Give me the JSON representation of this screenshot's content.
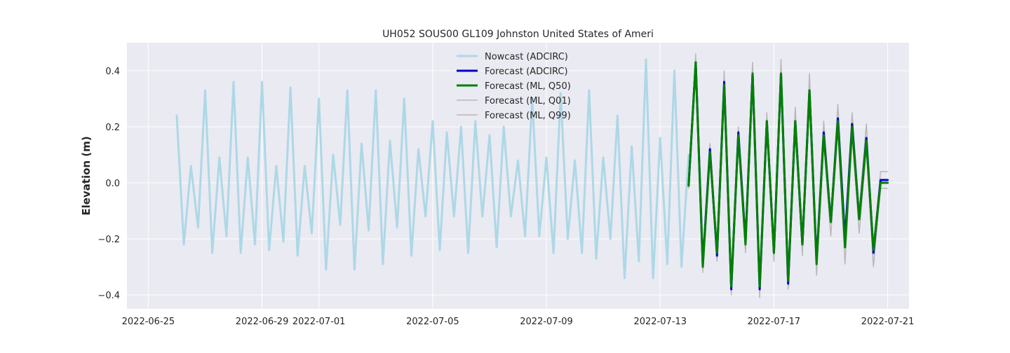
{
  "chart_data": {
    "type": "line",
    "title": "UH052 SOUS00 GL109 Johnston United States of Ameri",
    "xlabel": "",
    "ylabel": "Elevation (m)",
    "x_axis": {
      "type": "date",
      "range": [
        "2022-06-24T06:00",
        "2022-07-21T18:00"
      ],
      "ticks": [
        "2022-06-25",
        "2022-06-29",
        "2022-07-01",
        "2022-07-05",
        "2022-07-09",
        "2022-07-13",
        "2022-07-17",
        "2022-07-21"
      ]
    },
    "y_axis": {
      "range": [
        -0.45,
        0.5
      ],
      "ticks": [
        -0.4,
        -0.2,
        0.0,
        0.2,
        0.4
      ],
      "tick_labels": [
        "−0.4",
        "−0.2",
        "0.0",
        "0.2",
        "0.4"
      ]
    },
    "grid": true,
    "legend_placement": "top-center",
    "colors": {
      "background": "#eaeaf2",
      "grid": "#ffffff",
      "nowcast": "#add8e6",
      "forecast_adcirc": "#0000cd",
      "forecast_ml_q50": "#008000",
      "forecast_ml_quantiles": "#b8b8b8"
    },
    "series": [
      {
        "name": "Nowcast (ADCIRC)",
        "x": [
          "2022-06-26T00:00",
          "2022-06-26T06:00",
          "2022-06-26T12:00",
          "2022-06-26T18:00",
          "2022-06-27T00:00",
          "2022-06-27T06:00",
          "2022-06-27T12:00",
          "2022-06-27T18:00",
          "2022-06-28T00:00",
          "2022-06-28T06:00",
          "2022-06-28T12:00",
          "2022-06-28T18:00",
          "2022-06-29T00:00",
          "2022-06-29T06:00",
          "2022-06-29T12:00",
          "2022-06-29T18:00",
          "2022-06-30T00:00",
          "2022-06-30T06:00",
          "2022-06-30T12:00",
          "2022-06-30T18:00",
          "2022-07-01T00:00",
          "2022-07-01T06:00",
          "2022-07-01T12:00",
          "2022-07-01T18:00",
          "2022-07-02T00:00",
          "2022-07-02T06:00",
          "2022-07-02T12:00",
          "2022-07-02T18:00",
          "2022-07-03T00:00",
          "2022-07-03T06:00",
          "2022-07-03T12:00",
          "2022-07-03T18:00",
          "2022-07-04T00:00",
          "2022-07-04T06:00",
          "2022-07-04T12:00",
          "2022-07-04T18:00",
          "2022-07-05T00:00",
          "2022-07-05T06:00",
          "2022-07-05T12:00",
          "2022-07-05T18:00",
          "2022-07-06T00:00",
          "2022-07-06T06:00",
          "2022-07-06T12:00",
          "2022-07-06T18:00",
          "2022-07-07T00:00",
          "2022-07-07T06:00",
          "2022-07-07T12:00",
          "2022-07-07T18:00",
          "2022-07-08T00:00",
          "2022-07-08T06:00",
          "2022-07-08T12:00",
          "2022-07-08T18:00",
          "2022-07-09T00:00",
          "2022-07-09T06:00",
          "2022-07-09T12:00",
          "2022-07-09T18:00",
          "2022-07-10T00:00",
          "2022-07-10T06:00",
          "2022-07-10T12:00",
          "2022-07-10T18:00",
          "2022-07-11T00:00",
          "2022-07-11T06:00",
          "2022-07-11T12:00",
          "2022-07-11T18:00",
          "2022-07-12T00:00",
          "2022-07-12T06:00",
          "2022-07-12T12:00",
          "2022-07-12T18:00",
          "2022-07-13T00:00",
          "2022-07-13T06:00",
          "2022-07-13T12:00",
          "2022-07-13T18:00",
          "2022-07-14T00:00"
        ],
        "y": [
          0.24,
          -0.22,
          0.06,
          -0.16,
          0.33,
          -0.25,
          0.09,
          -0.19,
          0.36,
          -0.25,
          0.09,
          -0.22,
          0.36,
          -0.24,
          0.06,
          -0.21,
          0.34,
          -0.26,
          0.06,
          -0.18,
          0.3,
          -0.31,
          0.1,
          -0.15,
          0.33,
          -0.31,
          0.14,
          -0.17,
          0.33,
          -0.29,
          0.15,
          -0.16,
          0.3,
          -0.26,
          0.12,
          -0.12,
          0.22,
          -0.24,
          0.18,
          -0.12,
          0.2,
          -0.25,
          0.22,
          -0.12,
          0.17,
          -0.23,
          0.2,
          -0.12,
          0.08,
          -0.19,
          0.3,
          -0.19,
          0.09,
          -0.25,
          0.32,
          -0.2,
          0.08,
          -0.25,
          0.33,
          -0.27,
          0.09,
          -0.2,
          0.24,
          -0.34,
          0.13,
          -0.28,
          0.44,
          -0.34,
          0.16,
          -0.29,
          0.4,
          -0.3,
          0.1
        ]
      },
      {
        "name": "Forecast (ADCIRC)",
        "x": [
          "2022-07-14T00:00",
          "2022-07-14T06:00",
          "2022-07-14T12:00",
          "2022-07-14T18:00",
          "2022-07-15T00:00",
          "2022-07-15T06:00",
          "2022-07-15T12:00",
          "2022-07-15T18:00",
          "2022-07-16T00:00",
          "2022-07-16T06:00",
          "2022-07-16T12:00",
          "2022-07-16T18:00",
          "2022-07-17T00:00",
          "2022-07-17T06:00",
          "2022-07-17T12:00",
          "2022-07-17T18:00",
          "2022-07-18T00:00",
          "2022-07-18T06:00",
          "2022-07-18T12:00",
          "2022-07-18T18:00",
          "2022-07-19T00:00",
          "2022-07-19T06:00",
          "2022-07-19T12:00",
          "2022-07-19T18:00",
          "2022-07-20T00:00",
          "2022-07-20T06:00",
          "2022-07-20T12:00",
          "2022-07-20T18:00",
          "2022-07-21T00:00"
        ],
        "y": [
          -0.01,
          0.43,
          -0.29,
          0.12,
          -0.26,
          0.36,
          -0.38,
          0.18,
          -0.21,
          0.39,
          -0.38,
          0.22,
          -0.25,
          0.39,
          -0.36,
          0.22,
          -0.22,
          0.33,
          -0.28,
          0.18,
          -0.14,
          0.23,
          -0.2,
          0.21,
          -0.13,
          0.16,
          -0.25,
          0.01,
          0.01
        ]
      },
      {
        "name": "Forecast (ML, Q50)",
        "x": [
          "2022-07-14T00:00",
          "2022-07-14T06:00",
          "2022-07-14T12:00",
          "2022-07-14T18:00",
          "2022-07-15T00:00",
          "2022-07-15T06:00",
          "2022-07-15T12:00",
          "2022-07-15T18:00",
          "2022-07-16T00:00",
          "2022-07-16T06:00",
          "2022-07-16T12:00",
          "2022-07-16T18:00",
          "2022-07-17T00:00",
          "2022-07-17T06:00",
          "2022-07-17T12:00",
          "2022-07-17T18:00",
          "2022-07-18T00:00",
          "2022-07-18T06:00",
          "2022-07-18T12:00",
          "2022-07-18T18:00",
          "2022-07-19T00:00",
          "2022-07-19T06:00",
          "2022-07-19T12:00",
          "2022-07-19T18:00",
          "2022-07-20T00:00",
          "2022-07-20T06:00",
          "2022-07-20T12:00",
          "2022-07-20T18:00",
          "2022-07-21T00:00"
        ],
        "y": [
          -0.01,
          0.43,
          -0.3,
          0.11,
          -0.25,
          0.35,
          -0.37,
          0.17,
          -0.22,
          0.39,
          -0.37,
          0.22,
          -0.25,
          0.39,
          -0.35,
          0.22,
          -0.22,
          0.33,
          -0.29,
          0.17,
          -0.14,
          0.22,
          -0.23,
          0.2,
          -0.13,
          0.15,
          -0.24,
          0.0,
          0.0
        ]
      },
      {
        "name": "Forecast (ML, Q01)",
        "x": [
          "2022-07-14T00:00",
          "2022-07-14T06:00",
          "2022-07-14T12:00",
          "2022-07-14T18:00",
          "2022-07-15T00:00",
          "2022-07-15T06:00",
          "2022-07-15T12:00",
          "2022-07-15T18:00",
          "2022-07-16T00:00",
          "2022-07-16T06:00",
          "2022-07-16T12:00",
          "2022-07-16T18:00",
          "2022-07-17T00:00",
          "2022-07-17T06:00",
          "2022-07-17T12:00",
          "2022-07-17T18:00",
          "2022-07-18T00:00",
          "2022-07-18T06:00",
          "2022-07-18T12:00",
          "2022-07-18T18:00",
          "2022-07-19T00:00",
          "2022-07-19T06:00",
          "2022-07-19T12:00",
          "2022-07-19T18:00",
          "2022-07-20T00:00",
          "2022-07-20T06:00",
          "2022-07-20T12:00",
          "2022-07-20T18:00",
          "2022-07-21T00:00"
        ],
        "y": [
          -0.02,
          0.4,
          -0.32,
          0.09,
          -0.28,
          0.33,
          -0.4,
          0.14,
          -0.25,
          0.37,
          -0.41,
          0.19,
          -0.28,
          0.37,
          -0.38,
          0.2,
          -0.26,
          0.3,
          -0.33,
          0.15,
          -0.19,
          0.19,
          -0.29,
          0.17,
          -0.18,
          0.12,
          -0.3,
          -0.02,
          -0.02
        ]
      },
      {
        "name": "Forecast (ML, Q99)",
        "x": [
          "2022-07-14T00:00",
          "2022-07-14T06:00",
          "2022-07-14T12:00",
          "2022-07-14T18:00",
          "2022-07-15T00:00",
          "2022-07-15T06:00",
          "2022-07-15T12:00",
          "2022-07-15T18:00",
          "2022-07-16T00:00",
          "2022-07-16T06:00",
          "2022-07-16T12:00",
          "2022-07-16T18:00",
          "2022-07-17T00:00",
          "2022-07-17T06:00",
          "2022-07-17T12:00",
          "2022-07-17T18:00",
          "2022-07-18T00:00",
          "2022-07-18T06:00",
          "2022-07-18T12:00",
          "2022-07-18T18:00",
          "2022-07-19T00:00",
          "2022-07-19T06:00",
          "2022-07-19T12:00",
          "2022-07-19T18:00",
          "2022-07-20T00:00",
          "2022-07-20T06:00",
          "2022-07-20T12:00",
          "2022-07-20T18:00",
          "2022-07-21T00:00"
        ],
        "y": [
          0.02,
          0.46,
          -0.28,
          0.14,
          -0.23,
          0.4,
          -0.35,
          0.2,
          -0.18,
          0.43,
          -0.35,
          0.25,
          -0.22,
          0.44,
          -0.33,
          0.27,
          -0.19,
          0.39,
          -0.26,
          0.22,
          -0.12,
          0.28,
          -0.18,
          0.25,
          -0.1,
          0.21,
          -0.22,
          0.04,
          0.04
        ]
      }
    ]
  }
}
